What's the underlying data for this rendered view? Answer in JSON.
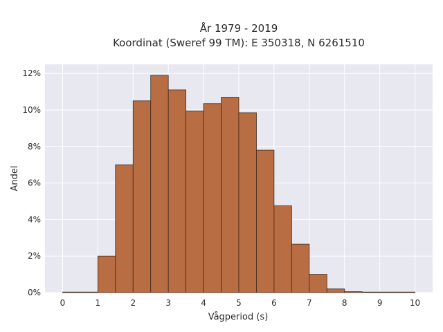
{
  "chart_data": {
    "type": "bar",
    "title_line1": "År 1979 - 2019",
    "title_line2": "Koordinat (Sweref 99 TM): E 350318, N 6261510",
    "xlabel": "Vågperiod (s)",
    "ylabel": "Andel",
    "bin_edges": [
      0,
      0.5,
      1,
      1.5,
      2,
      2.5,
      3,
      3.5,
      4,
      4.5,
      5,
      5.5,
      6,
      6.5,
      7,
      7.5,
      8,
      8.5,
      9,
      9.5,
      10
    ],
    "values": [
      0.0,
      0.0,
      2.0,
      7.0,
      10.5,
      11.9,
      11.1,
      9.95,
      10.35,
      10.7,
      9.85,
      7.8,
      4.75,
      2.65,
      1.0,
      0.2,
      0.05,
      0.02,
      0.0,
      0.0
    ],
    "xlim": [
      -0.5,
      10.5
    ],
    "ylim": [
      0,
      12.5
    ],
    "x_ticks": [
      {
        "value": 0,
        "label": "0"
      },
      {
        "value": 1,
        "label": "1"
      },
      {
        "value": 2,
        "label": "2"
      },
      {
        "value": 3,
        "label": "3"
      },
      {
        "value": 4,
        "label": "4"
      },
      {
        "value": 5,
        "label": "5"
      },
      {
        "value": 6,
        "label": "6"
      },
      {
        "value": 7,
        "label": "7"
      },
      {
        "value": 8,
        "label": "8"
      },
      {
        "value": 9,
        "label": "9"
      },
      {
        "value": 10,
        "label": "10"
      }
    ],
    "y_ticks": [
      {
        "value": 0,
        "label": "0%"
      },
      {
        "value": 2,
        "label": "2%"
      },
      {
        "value": 4,
        "label": "4%"
      },
      {
        "value": 6,
        "label": "6%"
      },
      {
        "value": 8,
        "label": "8%"
      },
      {
        "value": 10,
        "label": "10%"
      },
      {
        "value": 12,
        "label": "12%"
      }
    ],
    "grid": true,
    "colors": {
      "bar_fill": "#b86d43",
      "bar_edge": "#3d2a1e",
      "plot_bg": "#e8e8f1",
      "grid": "#ffffff"
    }
  }
}
